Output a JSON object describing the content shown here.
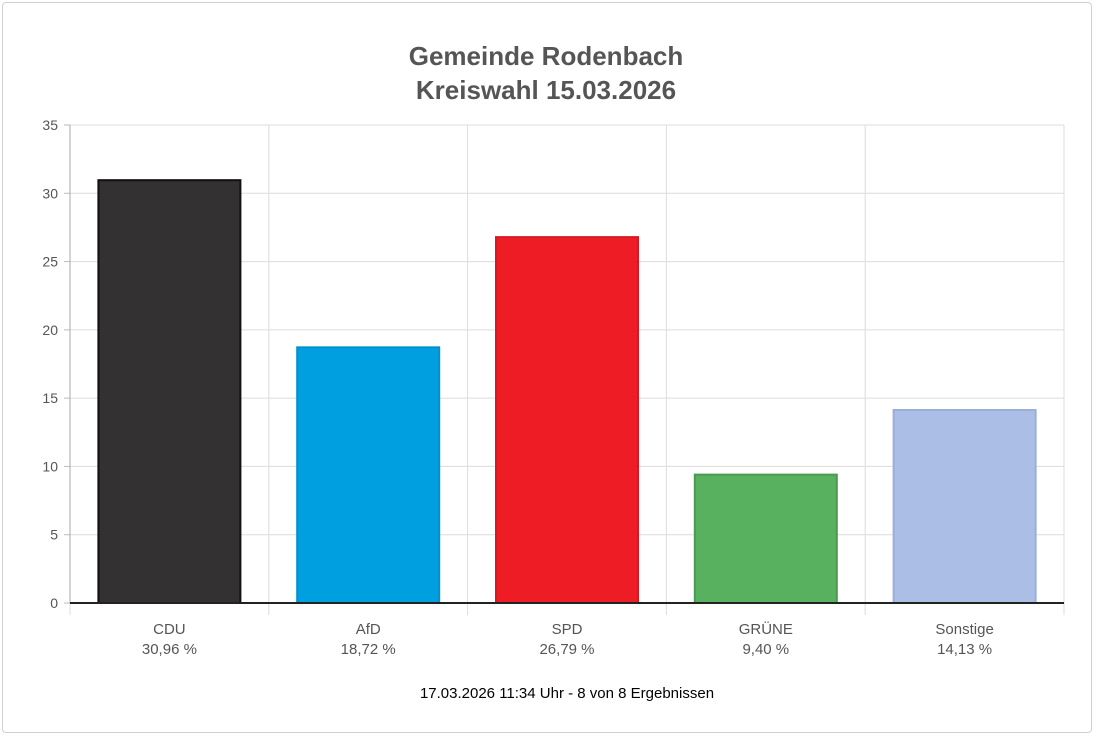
{
  "chart_data": {
    "type": "bar",
    "title": [
      "Gemeinde Rodenbach",
      "Kreiswahl 15.03.2026"
    ],
    "categories": [
      "CDU",
      "AfD",
      "SPD",
      "GRÜNE",
      "Sonstige"
    ],
    "value_labels": [
      "30,96 %",
      "18,72 %",
      "26,79 %",
      "9,40 %",
      "14,13 %"
    ],
    "values": [
      30.96,
      18.72,
      26.79,
      9.4,
      14.13
    ],
    "colors": [
      "#333132",
      "#009fe0",
      "#ee1c25",
      "#58b15e",
      "#abbee6"
    ],
    "border_colors": [
      "#111111",
      "#0090cc",
      "#d81820",
      "#4a9a50",
      "#9aaed8"
    ],
    "ylim": [
      0,
      35
    ],
    "yticks": [
      0,
      5,
      10,
      15,
      20,
      25,
      30,
      35
    ],
    "grid": true,
    "xlabel": "",
    "ylabel": "",
    "footer": "17.03.2026 11:34 Uhr - 8 von 8 Ergebnissen"
  }
}
